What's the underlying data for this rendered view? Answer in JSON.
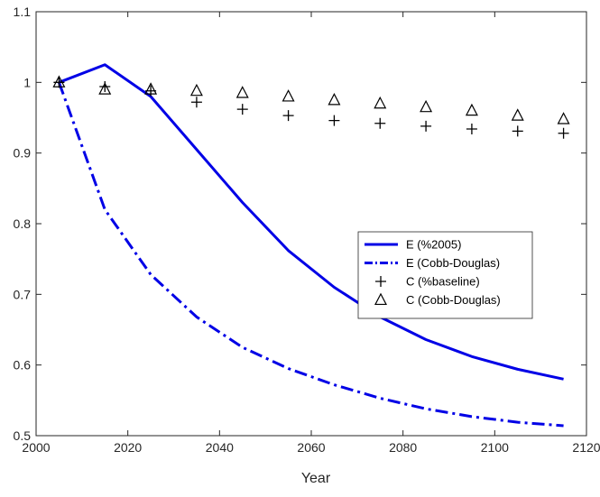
{
  "chart_data": {
    "type": "line",
    "title": "",
    "xlabel": "Year",
    "ylabel": "",
    "xlim": [
      2000,
      2120
    ],
    "ylim": [
      0.5,
      1.1
    ],
    "xticks": [
      2000,
      2020,
      2040,
      2060,
      2080,
      2100,
      2120
    ],
    "yticks": [
      0.5,
      0.6,
      0.7,
      0.8,
      0.9,
      1,
      1.1
    ],
    "xtick_labels": [
      "2000",
      "2020",
      "2040",
      "2060",
      "2080",
      "2100",
      "2120"
    ],
    "ytick_labels": [
      "0.5",
      "0.6",
      "0.7",
      "0.8",
      "0.9",
      "1",
      "1.1"
    ],
    "grid": false,
    "legend_position": "center-right",
    "series": [
      {
        "name": "E (%2005)",
        "style": "solid",
        "color": "#0000e6",
        "x": [
          2005,
          2015,
          2025,
          2035,
          2045,
          2055,
          2065,
          2075,
          2085,
          2095,
          2105,
          2115
        ],
        "values": [
          1.0,
          1.025,
          0.98,
          0.905,
          0.83,
          0.762,
          0.71,
          0.668,
          0.636,
          0.612,
          0.594,
          0.58
        ]
      },
      {
        "name": "E (Cobb-Douglas)",
        "style": "dash-dot",
        "color": "#0000e6",
        "x": [
          2005,
          2015,
          2025,
          2035,
          2045,
          2055,
          2065,
          2075,
          2085,
          2095,
          2105,
          2115
        ],
        "values": [
          1.0,
          0.82,
          0.728,
          0.668,
          0.625,
          0.595,
          0.572,
          0.553,
          0.538,
          0.527,
          0.519,
          0.514
        ]
      },
      {
        "name": "C (%baseline)",
        "style": "plus-marker",
        "color": "#000000",
        "x": [
          2005,
          2015,
          2025,
          2035,
          2045,
          2055,
          2065,
          2075,
          2085,
          2095,
          2105,
          2115
        ],
        "values": [
          1.0,
          0.994,
          0.988,
          0.972,
          0.962,
          0.953,
          0.946,
          0.942,
          0.938,
          0.934,
          0.931,
          0.928
        ]
      },
      {
        "name": "C (Cobb-Douglas)",
        "style": "triangle-marker",
        "color": "#000000",
        "x": [
          2005,
          2015,
          2025,
          2035,
          2045,
          2055,
          2065,
          2075,
          2085,
          2095,
          2105,
          2115
        ],
        "values": [
          1.0,
          0.99,
          0.99,
          0.988,
          0.985,
          0.98,
          0.975,
          0.97,
          0.965,
          0.96,
          0.953,
          0.948
        ]
      }
    ]
  }
}
